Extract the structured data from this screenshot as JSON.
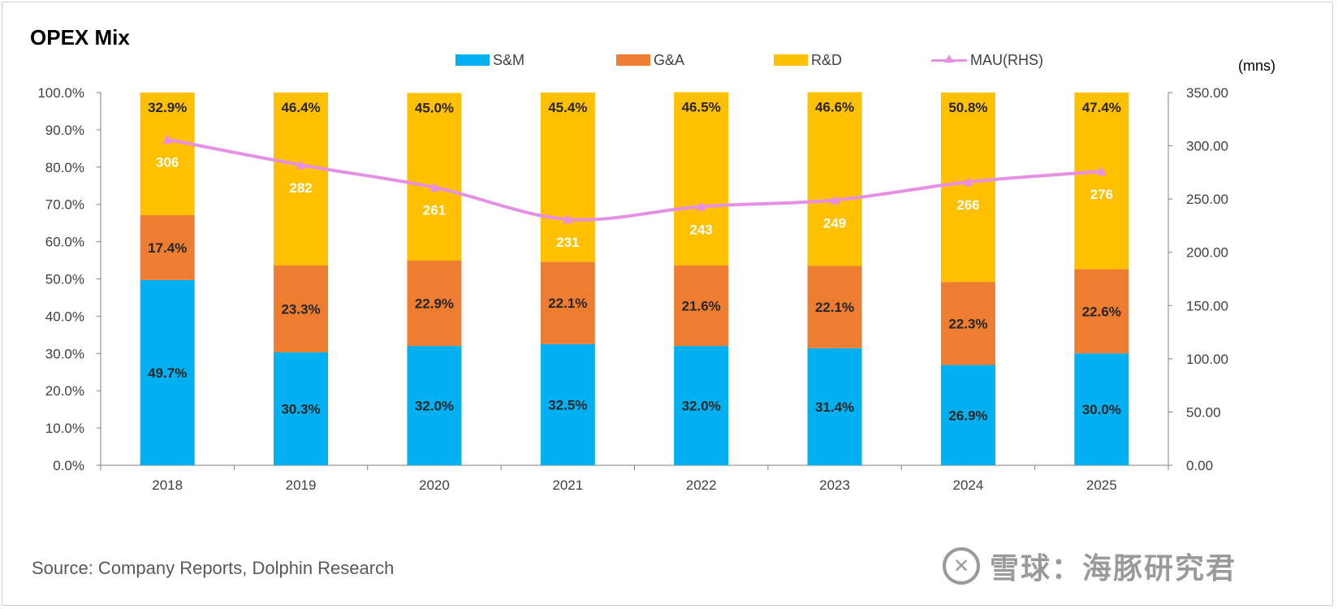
{
  "title": "OPEX Mix",
  "source": "Source: Company Reports, Dolphin Research",
  "unit_label": "(mns)",
  "brand": {
    "icon_glyph": "✕",
    "text": "雪球：海豚研究君"
  },
  "colors": {
    "sm": "#00B0F0",
    "ga": "#ED7D31",
    "rd": "#FFC000",
    "mau": "#E58FE5"
  },
  "legend": [
    {
      "key": "sm",
      "label": "S&M"
    },
    {
      "key": "ga",
      "label": "G&A"
    },
    {
      "key": "rd",
      "label": "R&D"
    },
    {
      "key": "mau",
      "label": "MAU(RHS)"
    }
  ],
  "chart_data": {
    "type": "bar",
    "stacked": true,
    "title": "OPEX Mix",
    "categories": [
      "2018",
      "2019",
      "2020",
      "2021",
      "2022",
      "2023",
      "2024",
      "2025"
    ],
    "series": [
      {
        "name": "S&M",
        "values": [
          49.7,
          30.3,
          32.0,
          32.5,
          32.0,
          31.4,
          26.9,
          30.0
        ],
        "labels": [
          "49.7%",
          "30.3%",
          "32.0%",
          "32.5%",
          "32.0%",
          "31.4%",
          "26.9%",
          "30.0%"
        ]
      },
      {
        "name": "G&A",
        "values": [
          17.4,
          23.3,
          22.9,
          22.1,
          21.6,
          22.1,
          22.3,
          22.6
        ],
        "labels": [
          "17.4%",
          "23.3%",
          "22.9%",
          "22.1%",
          "21.6%",
          "22.1%",
          "22.3%",
          "22.6%"
        ]
      },
      {
        "name": "R&D",
        "values": [
          32.9,
          46.4,
          45.0,
          45.4,
          46.5,
          46.6,
          50.8,
          47.4
        ],
        "labels": [
          "32.9%",
          "46.4%",
          "45.0%",
          "45.4%",
          "46.5%",
          "46.6%",
          "50.8%",
          "47.4%"
        ]
      }
    ],
    "line_series": {
      "name": "MAU(RHS)",
      "axis": "right",
      "values": [
        306,
        282,
        261,
        231,
        243,
        249,
        266,
        276
      ],
      "labels": [
        "306",
        "282",
        "261",
        "231",
        "243",
        "249",
        "266",
        "276"
      ]
    },
    "y_left": {
      "min": 0,
      "max": 100,
      "ticks": [
        "0.0%",
        "10.0%",
        "20.0%",
        "30.0%",
        "40.0%",
        "50.0%",
        "60.0%",
        "70.0%",
        "80.0%",
        "90.0%",
        "100.0%"
      ]
    },
    "y_right": {
      "min": 0,
      "max": 350,
      "ticks": [
        "0.00",
        "50.00",
        "100.00",
        "150.00",
        "200.00",
        "250.00",
        "300.00",
        "350.00"
      ],
      "label": "(mns)"
    },
    "legend_position": "top"
  }
}
